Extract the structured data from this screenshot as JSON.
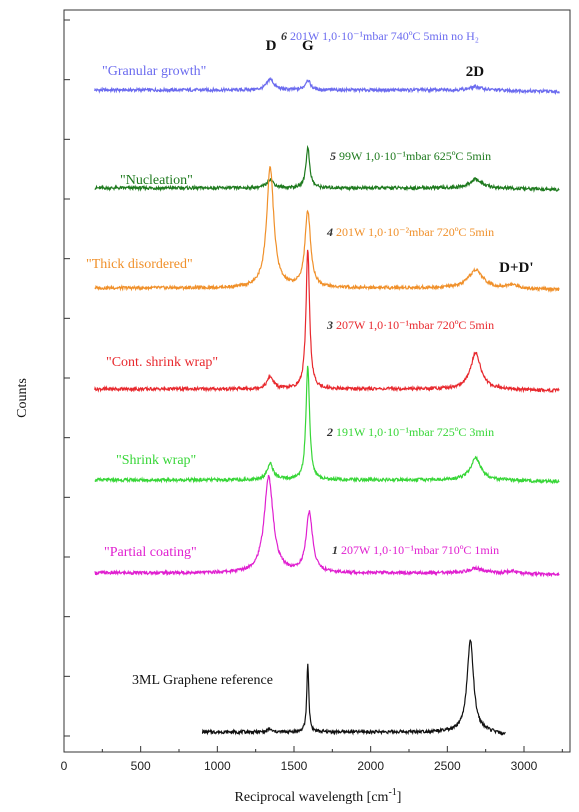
{
  "chart_data": {
    "type": "line",
    "xlabel": "Reciprocal wavelength [cm",
    "xlabel_sup": "-1",
    "xlabel_end": "]",
    "ylabel": "Counts",
    "xlim": [
      0,
      3300
    ],
    "x_ticks": [
      0,
      500,
      1000,
      1500,
      2000,
      2500,
      3000
    ],
    "x_tick_labels": [
      "0",
      "500",
      "1000",
      "1500",
      "2000",
      "2500",
      "3000"
    ],
    "y_ticks_count": 13,
    "peak_labels": [
      {
        "text": "D",
        "x": 1350
      },
      {
        "text": "G",
        "x": 1590
      },
      {
        "text": "2D",
        "x": 2680
      },
      {
        "text": "D+D'",
        "x": 2950
      }
    ],
    "series": [
      {
        "number": "6",
        "name": "\"Granular growth\"",
        "conditions": "201W 1,0·10⁻¹mbar 740ºC 5min no H₂",
        "color": "#6b6bef",
        "x_start": 200,
        "x_end": 3230,
        "baseline": 0.0,
        "peaks": [
          {
            "center": 1345,
            "height": 0.27,
            "width": 28
          },
          {
            "center": 1590,
            "height": 0.25,
            "width": 20
          },
          {
            "center": 2685,
            "height": 0.08,
            "width": 45
          }
        ]
      },
      {
        "number": "5",
        "name": "\"Nucleation\"",
        "conditions": "99W 1,0·10⁻¹mbar 625ºC 5min",
        "color": "#1e7a1e",
        "x_start": 200,
        "x_end": 3230,
        "baseline": 0.0,
        "peaks": [
          {
            "center": 1345,
            "height": 0.22,
            "width": 25
          },
          {
            "center": 1590,
            "height": 1.0,
            "width": 15
          },
          {
            "center": 2685,
            "height": 0.22,
            "width": 45
          }
        ]
      },
      {
        "number": "4",
        "name": "\"Thick disordered\"",
        "conditions": "201W 1,0·10⁻²mbar 720ºC 5min",
        "color": "#f0902a",
        "x_start": 200,
        "x_end": 3230,
        "baseline": 0.0,
        "peaks": [
          {
            "center": 1345,
            "height": 3.0,
            "width": 28
          },
          {
            "center": 1590,
            "height": 1.9,
            "width": 22
          },
          {
            "center": 2685,
            "height": 0.45,
            "width": 55
          },
          {
            "center": 2925,
            "height": 0.08,
            "width": 45
          }
        ]
      },
      {
        "number": "3",
        "name": "\"Cont. shrink wrap\"",
        "conditions": "207W 1,0·10⁻¹mbar 720ºC 5min",
        "color": "#e8292e",
        "x_start": 200,
        "x_end": 3230,
        "baseline": 0.0,
        "peaks": [
          {
            "center": 1345,
            "height": 0.3,
            "width": 25
          },
          {
            "center": 1590,
            "height": 3.5,
            "width": 14
          },
          {
            "center": 2685,
            "height": 0.9,
            "width": 40
          }
        ]
      },
      {
        "number": "2",
        "name": "\"Shrink wrap\"",
        "conditions": "191W 1,0·10⁻¹mbar 725ºC 3min",
        "color": "#37d637",
        "x_start": 200,
        "x_end": 3230,
        "baseline": 0.0,
        "peaks": [
          {
            "center": 1345,
            "height": 0.4,
            "width": 25
          },
          {
            "center": 1590,
            "height": 2.85,
            "width": 14
          },
          {
            "center": 2685,
            "height": 0.55,
            "width": 40
          }
        ]
      },
      {
        "number": "1",
        "name": "\"Partial coating\"",
        "conditions": "207W 1,0·10⁻¹mbar 710ºC 1min",
        "color": "#e01fd0",
        "x_start": 200,
        "x_end": 3230,
        "baseline": 0.0,
        "peaks": [
          {
            "center": 1335,
            "height": 2.4,
            "width": 35
          },
          {
            "center": 1600,
            "height": 1.5,
            "width": 25
          },
          {
            "center": 2685,
            "height": 0.12,
            "width": 50
          },
          {
            "center": 2925,
            "height": 0.06,
            "width": 45
          }
        ]
      },
      {
        "number": "",
        "name": "3ML Graphene reference",
        "conditions": "",
        "color": "#111111",
        "x_start": 900,
        "x_end": 2880,
        "baseline": 0.0,
        "peaks": [
          {
            "center": 1340,
            "height": 0.08,
            "width": 12
          },
          {
            "center": 1590,
            "height": 1.7,
            "width": 8
          },
          {
            "center": 2650,
            "height": 2.3,
            "width": 25
          }
        ]
      }
    ]
  }
}
